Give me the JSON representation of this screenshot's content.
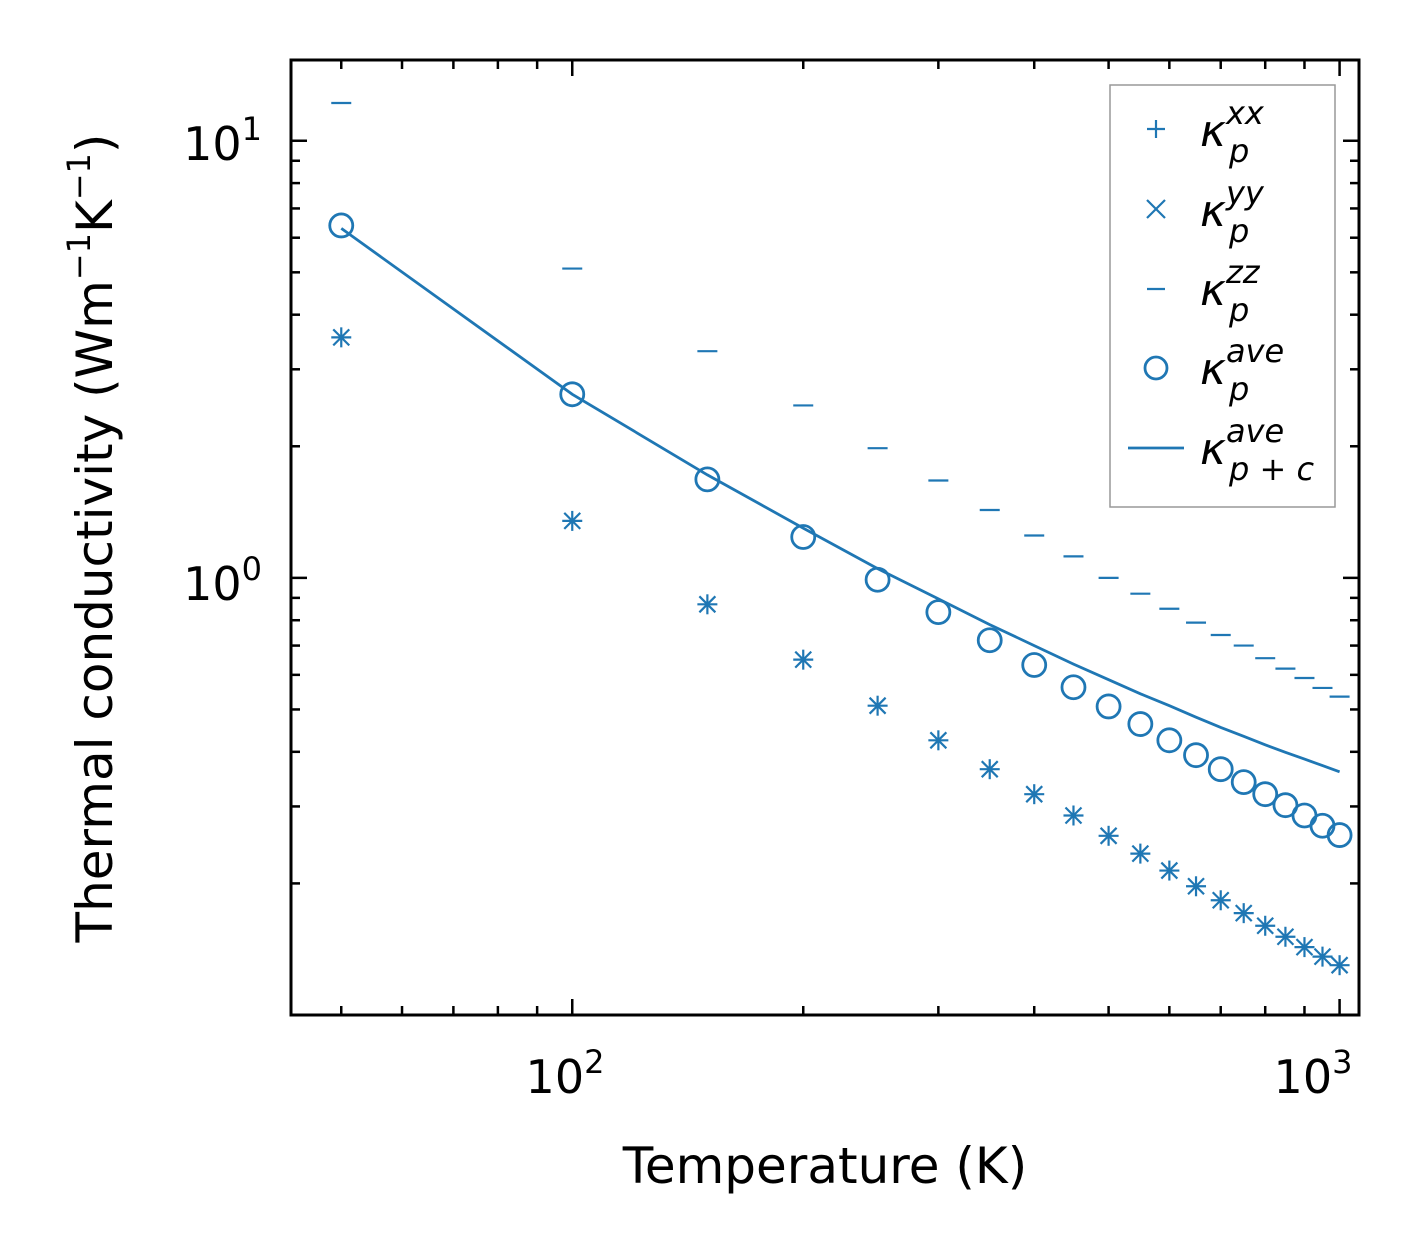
{
  "chart_data": {
    "type": "scatter",
    "xscale": "log",
    "yscale": "log",
    "xlabel": "Temperature (K)",
    "ylabel": {
      "prefix": "Thermal conductivity (Wm",
      "exp1": "−1",
      "mid": "K",
      "exp2": "−1",
      "suffix": ")"
    },
    "xlim": [
      43,
      1060
    ],
    "ylim": [
      0.1,
      15.3
    ],
    "xticks": [
      {
        "value": 100,
        "base": "10",
        "exp": "2"
      },
      {
        "value": 1000,
        "base": "10",
        "exp": "3"
      }
    ],
    "yticks": [
      {
        "value": 1,
        "base": "10",
        "exp": "0"
      },
      {
        "value": 10,
        "base": "10",
        "exp": "1"
      }
    ],
    "color": "#1f77b4",
    "x": [
      50,
      100,
      150,
      200,
      250,
      300,
      350,
      400,
      450,
      500,
      550,
      600,
      650,
      700,
      750,
      800,
      850,
      900,
      950,
      1000
    ],
    "series": [
      {
        "name": "kappa_p_xx",
        "marker": "plus",
        "values": [
          3.55,
          1.35,
          0.87,
          0.65,
          0.51,
          0.425,
          0.365,
          0.32,
          0.286,
          0.257,
          0.234,
          0.214,
          0.197,
          0.183,
          0.171,
          0.16,
          0.151,
          0.143,
          0.136,
          0.13
        ]
      },
      {
        "name": "kappa_p_yy",
        "marker": "x",
        "values": [
          3.55,
          1.35,
          0.87,
          0.65,
          0.51,
          0.425,
          0.365,
          0.32,
          0.286,
          0.257,
          0.234,
          0.214,
          0.197,
          0.183,
          0.171,
          0.16,
          0.151,
          0.143,
          0.136,
          0.13
        ]
      },
      {
        "name": "kappa_p_zz",
        "marker": "hline",
        "values": [
          12.2,
          5.1,
          3.3,
          2.48,
          1.98,
          1.67,
          1.43,
          1.25,
          1.12,
          1.0,
          0.92,
          0.85,
          0.79,
          0.74,
          0.7,
          0.655,
          0.62,
          0.59,
          0.56,
          0.535
        ]
      },
      {
        "name": "kappa_p_ave",
        "marker": "circle",
        "values": [
          6.4,
          2.63,
          1.68,
          1.24,
          0.99,
          0.835,
          0.72,
          0.632,
          0.562,
          0.508,
          0.463,
          0.425,
          0.393,
          0.365,
          0.341,
          0.32,
          0.302,
          0.286,
          0.271,
          0.258
        ]
      },
      {
        "name": "kappa_pc_ave",
        "marker": "line",
        "values": [
          6.3,
          2.63,
          1.72,
          1.3,
          1.05,
          0.895,
          0.782,
          0.7,
          0.635,
          0.585,
          0.543,
          0.51,
          0.48,
          0.455,
          0.434,
          0.415,
          0.399,
          0.385,
          0.372,
          0.36
        ]
      }
    ],
    "legend": {
      "position": "top-right",
      "entries": [
        {
          "marker": "plus",
          "symbol": "κ",
          "sub": "p",
          "sup": "xx"
        },
        {
          "marker": "x",
          "symbol": "κ",
          "sub": "p",
          "sup": "yy"
        },
        {
          "marker": "hline",
          "symbol": "κ",
          "sub": "p",
          "sup": "zz"
        },
        {
          "marker": "circle",
          "symbol": "κ",
          "sub": "p",
          "sup": "ave"
        },
        {
          "marker": "line",
          "symbol": "κ",
          "sub": "p + c",
          "sup": "ave"
        }
      ]
    }
  }
}
